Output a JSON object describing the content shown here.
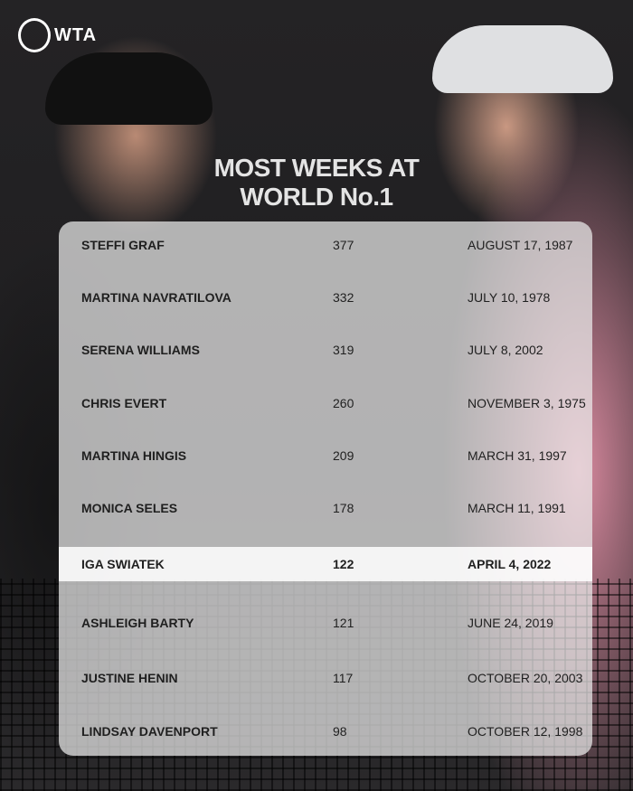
{
  "brand": {
    "logo": "WTA"
  },
  "title_lines": [
    "MOST WEEKS AT",
    "WORLD No.1"
  ],
  "rows": [
    {
      "name": "STEFFI GRAF",
      "weeks": "377",
      "date": "AUGUST 17, 1987"
    },
    {
      "name": "MARTINA NAVRATILOVA",
      "weeks": "332",
      "date": "JULY 10, 1978"
    },
    {
      "name": "SERENA WILLIAMS",
      "weeks": "319",
      "date": "JULY 8, 2002"
    },
    {
      "name": "CHRIS EVERT",
      "weeks": "260",
      "date": "NOVEMBER 3, 1975"
    },
    {
      "name": "MARTINA HINGIS",
      "weeks": "209",
      "date": "MARCH 31, 1997"
    },
    {
      "name": "MONICA SELES",
      "weeks": "178",
      "date": "MARCH 11, 1991"
    },
    {
      "name": "IGA SWIATEK",
      "weeks": "122",
      "date": "APRIL 4, 2022",
      "highlighted": true
    },
    {
      "name": "ASHLEIGH BARTY",
      "weeks": "121",
      "date": "JUNE 24, 2019"
    },
    {
      "name": "JUSTINE HENIN",
      "weeks": "117",
      "date": "OCTOBER 20, 2003"
    },
    {
      "name": "LINDSAY DAVENPORT",
      "weeks": "98",
      "date": "OCTOBER 12, 1998"
    }
  ],
  "colors": {
    "panel": "#ebebeb",
    "highlight": "#ffffff",
    "title": "#e4e4e4"
  }
}
